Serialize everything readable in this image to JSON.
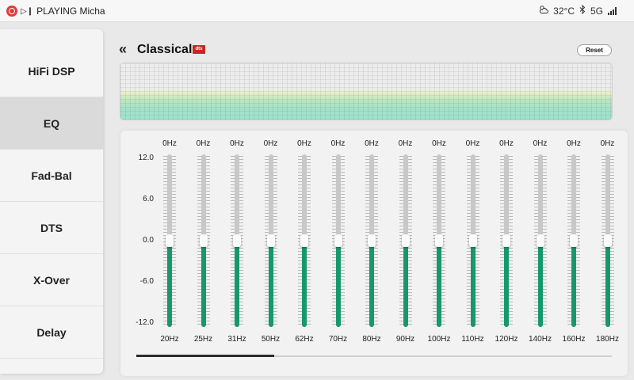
{
  "status_bar": {
    "now_playing": "PLAYING Michae",
    "app_icon": "music-app-icon",
    "play_icon": "play-pause-icon",
    "weather_icon": "cloud-sun-icon",
    "temperature": "32°C",
    "bluetooth_icon": "bluetooth-icon",
    "network": "5G",
    "signal_icon": "signal-bars-icon"
  },
  "sidebar": {
    "items": [
      {
        "label": "HiFi DSP",
        "active": false
      },
      {
        "label": "EQ",
        "active": true
      },
      {
        "label": "Fad-Bal",
        "active": false
      },
      {
        "label": "DTS",
        "active": false
      },
      {
        "label": "X-Over",
        "active": false
      },
      {
        "label": "Delay",
        "active": false
      }
    ]
  },
  "header": {
    "back_icon": "double-chevron-left-icon",
    "title": "Classical",
    "badge": "dts",
    "reset_label": "Reset"
  },
  "eq": {
    "scale": [
      "12.0",
      "6.0",
      "0.0",
      "-6.0",
      "-12.0"
    ],
    "range": [
      -12,
      12
    ],
    "bands": [
      {
        "freq": "20Hz",
        "value_label": "0Hz",
        "gain": 0
      },
      {
        "freq": "25Hz",
        "value_label": "0Hz",
        "gain": 0
      },
      {
        "freq": "31Hz",
        "value_label": "0Hz",
        "gain": 0
      },
      {
        "freq": "50Hz",
        "value_label": "0Hz",
        "gain": 0
      },
      {
        "freq": "62Hz",
        "value_label": "0Hz",
        "gain": 0
      },
      {
        "freq": "70Hz",
        "value_label": "0Hz",
        "gain": 0
      },
      {
        "freq": "80Hz",
        "value_label": "0Hz",
        "gain": 0
      },
      {
        "freq": "90Hz",
        "value_label": "0Hz",
        "gain": 0
      },
      {
        "freq": "100Hz",
        "value_label": "0Hz",
        "gain": 0
      },
      {
        "freq": "110Hz",
        "value_label": "0Hz",
        "gain": 0
      },
      {
        "freq": "120Hz",
        "value_label": "0Hz",
        "gain": 0
      },
      {
        "freq": "140Hz",
        "value_label": "0Hz",
        "gain": 0
      },
      {
        "freq": "160Hz",
        "value_label": "0Hz",
        "gain": 0
      },
      {
        "freq": "180Hz",
        "value_label": "0Hz",
        "gain": 0
      }
    ],
    "scroll_fraction": 0.29
  },
  "colors": {
    "accent": "#17976d",
    "dts_red": "#c62828"
  }
}
